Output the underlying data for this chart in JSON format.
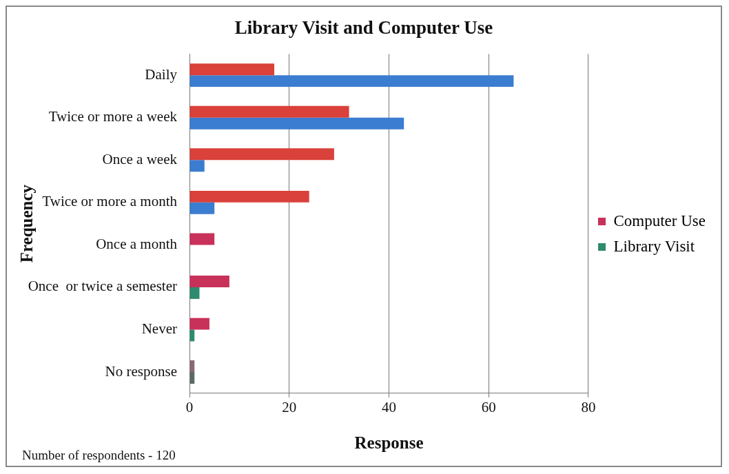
{
  "chart_data": {
    "type": "bar",
    "orientation": "horizontal",
    "title": "Library Visit and Computer Use",
    "xlabel": "Response",
    "ylabel": "Frequency",
    "categories": [
      "Daily",
      "Twice or more a week",
      "Once a week",
      "Twice or more a month",
      "Once a month",
      "Once  or twice a semester",
      "Never",
      "No response"
    ],
    "series": [
      {
        "name": "Computer Use",
        "color": "#c8315a",
        "colors": [
          "#d9413a",
          "#d9413a",
          "#d9413a",
          "#d9413a",
          "#c8315a",
          "#c8315a",
          "#c8315a",
          "#8a6a70"
        ],
        "values": [
          17,
          32,
          29,
          24,
          5,
          8,
          4,
          1
        ]
      },
      {
        "name": "Library Visit",
        "color": "#2e8b6e",
        "colors": [
          "#3b7dd0",
          "#3b7dd0",
          "#3b7dd0",
          "#3b7dd0",
          "#2e8b6e",
          "#2e8b6e",
          "#2e8b6e",
          "#5a6a66"
        ],
        "values": [
          65,
          43,
          3,
          5,
          0,
          2,
          1,
          1
        ]
      }
    ],
    "xlim": [
      0,
      80
    ],
    "xticks": [
      0,
      20,
      40,
      60,
      80
    ],
    "grid": "x",
    "legend": "right",
    "annotations": [
      "Number of respondents  -  120"
    ]
  }
}
